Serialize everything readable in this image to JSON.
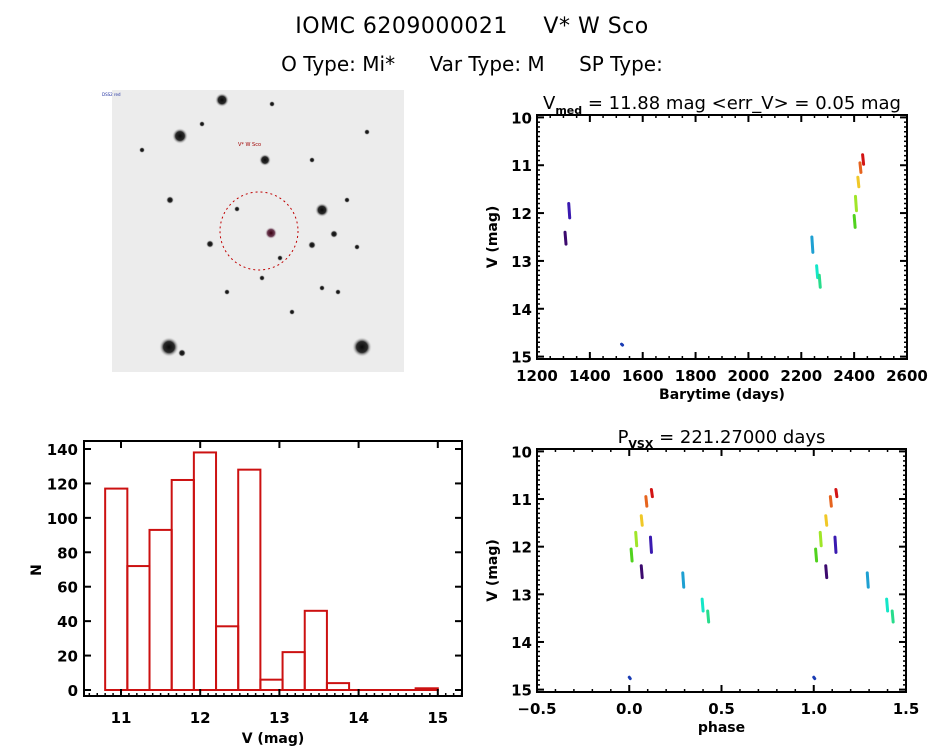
{
  "header": {
    "object_id": "IOMC 6209000021",
    "object_name": "V* W Sco",
    "o_type": "O Type: Mi*",
    "var_type": "Var Type: M",
    "sp_type": "SP Type:"
  },
  "sky_image": {
    "description": "finder chart, inverted grayscale star field",
    "target_label": "V* W Sco",
    "circle_color": "#c00000"
  },
  "chart_data": [
    {
      "type": "scatter",
      "id": "light-curve",
      "title_main": "V",
      "title_sub": "med",
      "title_rest": " = 11.88 mag <err_V> = 0.05 mag",
      "xlabel": "Barytime (days)",
      "ylabel": "V (mag)",
      "xlim": [
        1200,
        2600
      ],
      "ylim": [
        15.05,
        9.95
      ],
      "xticks": [
        1200,
        1400,
        1600,
        1800,
        2000,
        2200,
        2400,
        2600
      ],
      "yticks": [
        10,
        11,
        12,
        13,
        14,
        15
      ],
      "segments": [
        {
          "x": 1306,
          "y1": 12.4,
          "y2": 12.65,
          "color": "#3c0a6e"
        },
        {
          "x": 1320,
          "y1": 11.8,
          "y2": 12.1,
          "color": "#3a1ab0"
        },
        {
          "x": 1520,
          "y1": 14.74,
          "y2": 14.76,
          "color": "#1a3cb4"
        },
        {
          "x": 2240,
          "y1": 12.5,
          "y2": 12.82,
          "color": "#1ea0d2"
        },
        {
          "x": 2258,
          "y1": 13.1,
          "y2": 13.35,
          "color": "#14e6c8"
        },
        {
          "x": 2268,
          "y1": 13.3,
          "y2": 13.55,
          "color": "#28dc8c"
        },
        {
          "x": 2400,
          "y1": 12.05,
          "y2": 12.3,
          "color": "#50d21e"
        },
        {
          "x": 2405,
          "y1": 11.65,
          "y2": 11.95,
          "color": "#a0e628"
        },
        {
          "x": 2414,
          "y1": 11.25,
          "y2": 11.45,
          "color": "#f0c828"
        },
        {
          "x": 2422,
          "y1": 10.95,
          "y2": 11.15,
          "color": "#e6641e"
        },
        {
          "x": 2432,
          "y1": 10.78,
          "y2": 10.98,
          "color": "#d21414"
        }
      ]
    },
    {
      "type": "bar",
      "id": "magnitude-histogram",
      "xlabel": "V (mag)",
      "ylabel": "N",
      "xlim": [
        10.4,
        15.3
      ],
      "ylim": [
        0,
        145
      ],
      "xticks": [
        11,
        12,
        13,
        14,
        15
      ],
      "yticks": [
        0,
        20,
        40,
        60,
        80,
        100,
        120,
        140
      ],
      "bin_edges": [
        10.8,
        11.08,
        11.36,
        11.64,
        11.92,
        12.2,
        12.48,
        12.76,
        13.04,
        13.32,
        13.6,
        13.88,
        14.16,
        14.44,
        14.72,
        15.0
      ],
      "values": [
        117,
        72,
        93,
        122,
        138,
        37,
        128,
        6,
        22,
        46,
        4,
        0,
        0,
        0,
        1
      ],
      "color": "#cc1111"
    },
    {
      "type": "scatter",
      "id": "phase-curve",
      "title_main": "P",
      "title_sub": "VSX",
      "title_rest": " = 221.27000 days",
      "xlabel": "phase",
      "ylabel": "V (mag)",
      "xlim": [
        -0.5,
        1.5
      ],
      "ylim": [
        15.05,
        9.95
      ],
      "xticks": [
        -0.5,
        0.0,
        0.5,
        1.0,
        1.5
      ],
      "xtick_labels": [
        "−0.5",
        "0.0",
        "0.5",
        "1.0",
        "1.5"
      ],
      "yticks": [
        10,
        11,
        12,
        13,
        14,
        15
      ],
      "segments": [
        {
          "x": 0.065,
          "y1": 12.4,
          "y2": 12.65,
          "color": "#3c0a6e"
        },
        {
          "x": 0.115,
          "y1": 11.8,
          "y2": 12.12,
          "color": "#3a1ab0"
        },
        {
          "x": 0.0,
          "y1": 14.74,
          "y2": 14.77,
          "color": "#1a3cb4"
        },
        {
          "x": 0.29,
          "y1": 12.55,
          "y2": 12.85,
          "color": "#1ea0d2"
        },
        {
          "x": 0.395,
          "y1": 13.1,
          "y2": 13.35,
          "color": "#14e6c8"
        },
        {
          "x": 0.425,
          "y1": 13.35,
          "y2": 13.58,
          "color": "#28dc8c"
        },
        {
          "x": 0.01,
          "y1": 12.05,
          "y2": 12.3,
          "color": "#50d21e"
        },
        {
          "x": 0.035,
          "y1": 11.7,
          "y2": 11.98,
          "color": "#a0e628"
        },
        {
          "x": 0.065,
          "y1": 11.35,
          "y2": 11.55,
          "color": "#f0c828"
        },
        {
          "x": 0.09,
          "y1": 10.95,
          "y2": 11.15,
          "color": "#e6641e"
        },
        {
          "x": 0.12,
          "y1": 10.8,
          "y2": 10.95,
          "color": "#d21414"
        },
        {
          "x": 1.065,
          "y1": 12.4,
          "y2": 12.65,
          "color": "#3c0a6e"
        },
        {
          "x": 1.115,
          "y1": 11.8,
          "y2": 12.12,
          "color": "#3a1ab0"
        },
        {
          "x": 1.0,
          "y1": 14.74,
          "y2": 14.77,
          "color": "#1a3cb4"
        },
        {
          "x": 1.29,
          "y1": 12.55,
          "y2": 12.85,
          "color": "#1ea0d2"
        },
        {
          "x": 1.395,
          "y1": 13.1,
          "y2": 13.35,
          "color": "#14e6c8"
        },
        {
          "x": 1.425,
          "y1": 13.35,
          "y2": 13.58,
          "color": "#28dc8c"
        },
        {
          "x": 1.01,
          "y1": 12.05,
          "y2": 12.3,
          "color": "#50d21e"
        },
        {
          "x": 1.035,
          "y1": 11.7,
          "y2": 11.98,
          "color": "#a0e628"
        },
        {
          "x": 1.065,
          "y1": 11.35,
          "y2": 11.55,
          "color": "#f0c828"
        },
        {
          "x": 1.09,
          "y1": 10.95,
          "y2": 11.15,
          "color": "#e6641e"
        },
        {
          "x": 1.12,
          "y1": 10.8,
          "y2": 10.95,
          "color": "#d21414"
        }
      ]
    }
  ]
}
